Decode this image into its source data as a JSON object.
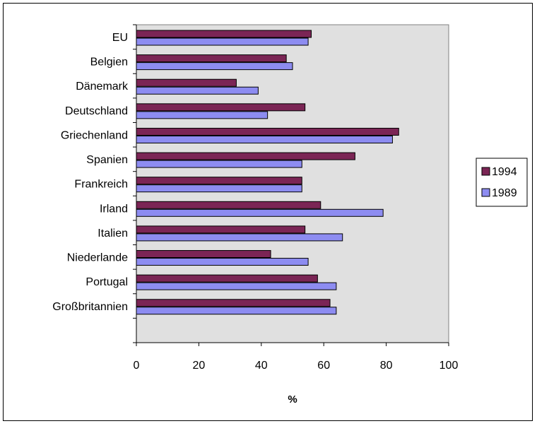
{
  "chart_data": {
    "type": "bar",
    "orientation": "horizontal",
    "categories": [
      "EU",
      "Belgien",
      "Dänemark",
      "Deutschland",
      "Griechenland",
      "Spanien",
      "Frankreich",
      "Irland",
      "Italien",
      "Niederlande",
      "Portugal",
      "Großbritannien"
    ],
    "series": [
      {
        "name": "1994",
        "color": "#7b2555",
        "values": [
          56,
          48,
          32,
          54,
          84,
          70,
          53,
          59,
          54,
          43,
          58,
          62
        ]
      },
      {
        "name": "1989",
        "color": "#8d8cf1",
        "values": [
          55,
          50,
          39,
          42,
          82,
          53,
          53,
          79,
          66,
          55,
          64,
          64
        ]
      }
    ],
    "xlabel": "%",
    "ylabel": "",
    "xlim": [
      0,
      100
    ],
    "xticks": [
      "0",
      "20",
      "40",
      "60",
      "80",
      "100"
    ],
    "plot_background": "#e0e0e0",
    "grid": false,
    "legend_position": "right",
    "legend_order": [
      "1994",
      "1989"
    ]
  }
}
